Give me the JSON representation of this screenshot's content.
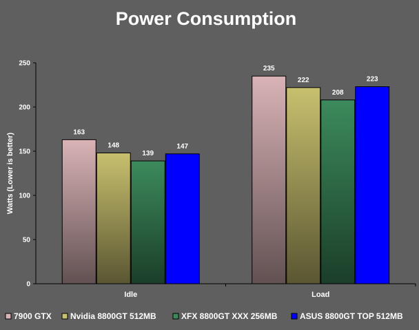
{
  "chart_data": {
    "type": "bar",
    "title": "Power Consumption",
    "ylabel": "Watts (Lower is better)",
    "xlabel": "",
    "categories": [
      "Idle",
      "Load"
    ],
    "ylim": [
      0,
      250
    ],
    "yticks": [
      0,
      50,
      100,
      150,
      200,
      250
    ],
    "grid": false,
    "legend_position": "bottom",
    "series": [
      {
        "name": "7900 GTX",
        "values": [
          163,
          235
        ],
        "color": "#d9b3b6"
      },
      {
        "name": "Nvidia 8800GT 512MB",
        "values": [
          148,
          222
        ],
        "color": "#c8c06e"
      },
      {
        "name": "XFX 8800GT XXX 256MB",
        "values": [
          139,
          208
        ],
        "color": "#3c8a5c"
      },
      {
        "name": "ASUS 8800GT TOP 512MB",
        "values": [
          147,
          223
        ],
        "color": "#0000ff"
      }
    ]
  },
  "colors": {
    "background": "#5f5f5f",
    "axis": "#000000",
    "text": "#ffffff"
  }
}
